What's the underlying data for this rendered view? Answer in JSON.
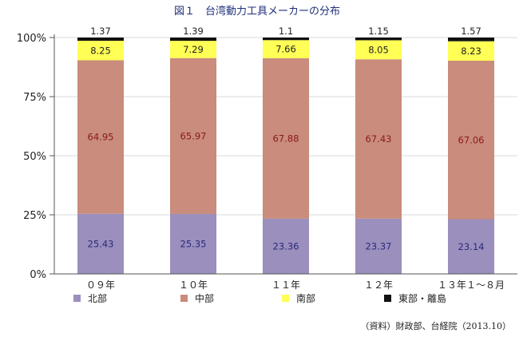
{
  "chart_data": {
    "type": "bar",
    "stacked": true,
    "percent": true,
    "title": "図１　台湾動力工具メーカーの分布",
    "categories": [
      "０９年",
      "１０年",
      "１１年",
      "１２年",
      "１３年１〜８月"
    ],
    "series": [
      {
        "name": "北部",
        "color": "#9b8fbd",
        "values": [
          25.43,
          25.35,
          23.36,
          23.37,
          23.14
        ],
        "labels": [
          "25.43",
          "25.35",
          "23.36",
          "23.37",
          "23.14"
        ],
        "label_color": "#2b2b7a"
      },
      {
        "name": "中部",
        "color": "#c98c7d",
        "values": [
          64.95,
          65.97,
          67.88,
          67.43,
          67.06
        ],
        "labels": [
          "64.95",
          "65.97",
          "67.88",
          "67.43",
          "67.06"
        ],
        "label_color": "#8b1a1a"
      },
      {
        "name": "南部",
        "color": "#ffff55",
        "values": [
          8.25,
          7.29,
          7.66,
          8.05,
          8.23
        ],
        "labels": [
          "8.25",
          "7.29",
          "7.66",
          "8.05",
          "8.23"
        ],
        "label_color": "#222222"
      },
      {
        "name": "東部・離島",
        "color": "#111111",
        "values": [
          1.37,
          1.39,
          1.1,
          1.15,
          1.57
        ],
        "labels": [
          "1.37",
          "1.39",
          "1.1",
          "1.15",
          "1.57"
        ],
        "label_color": "#222222"
      }
    ],
    "yticks": [
      "0%",
      "25%",
      "50%",
      "75%",
      "100%"
    ],
    "ylim": [
      0,
      100
    ],
    "grid": true,
    "legend_position": "bottom",
    "source": "（資料）財政部、台経院（2013.10）"
  }
}
